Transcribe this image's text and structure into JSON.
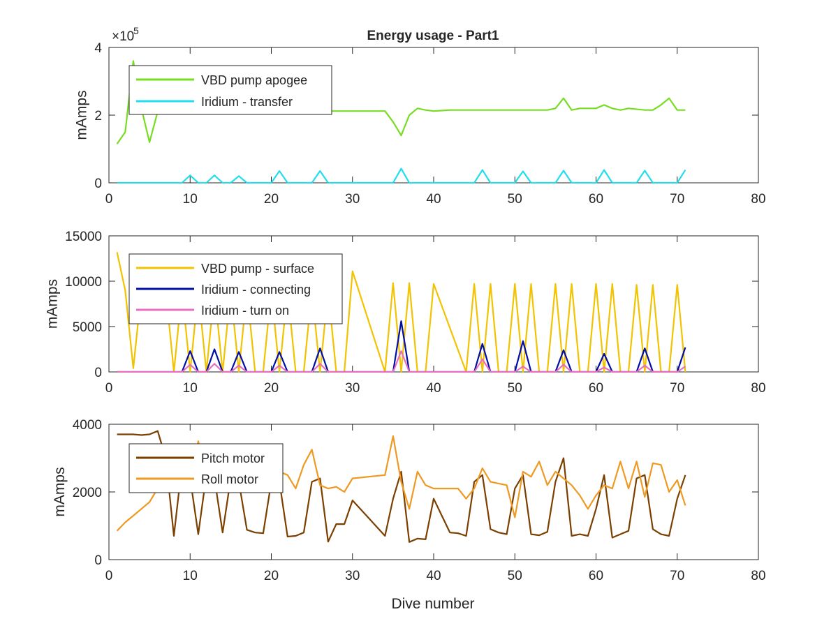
{
  "figure": {
    "title": "Energy usage - Part1",
    "xlabel": "Dive number"
  },
  "chart_data": [
    {
      "type": "line",
      "title": "Energy usage - Part1",
      "xlabel": "",
      "ylabel": "mAmps",
      "xlim": [
        0,
        80
      ],
      "ylim": [
        0,
        4
      ],
      "y_exponent_label": "×10",
      "y_exponent_power": "5",
      "xticks": [
        "0",
        "10",
        "20",
        "30",
        "40",
        "50",
        "60",
        "70",
        "80"
      ],
      "yticks": [
        "0",
        "2",
        "4"
      ],
      "ytick_values": [
        0,
        2,
        4
      ],
      "grid": false,
      "legend_position": "top-left",
      "series": [
        {
          "name": "VBD pump apogee",
          "color": "#77dd22",
          "x": [
            1,
            2,
            3,
            4,
            5,
            6,
            7,
            8,
            9,
            10,
            12,
            14,
            16,
            18,
            20,
            22,
            24,
            26,
            28,
            30,
            32,
            34,
            35,
            36,
            37,
            38,
            39,
            40,
            42,
            44,
            46,
            48,
            50,
            52,
            54,
            55,
            56,
            57,
            58,
            60,
            61,
            62,
            63,
            64,
            66,
            67,
            68,
            69,
            70,
            71
          ],
          "y": [
            1.15,
            1.5,
            3.6,
            2.2,
            1.2,
            2.1,
            2.1,
            2.1,
            2.1,
            2.12,
            2.12,
            2.12,
            2.12,
            2.12,
            2.12,
            2.12,
            2.12,
            2.12,
            2.12,
            2.12,
            2.12,
            2.12,
            1.8,
            1.4,
            2.0,
            2.2,
            2.15,
            2.12,
            2.15,
            2.15,
            2.15,
            2.15,
            2.15,
            2.15,
            2.15,
            2.2,
            2.5,
            2.15,
            2.2,
            2.2,
            2.3,
            2.2,
            2.15,
            2.2,
            2.15,
            2.15,
            2.3,
            2.5,
            2.15,
            2.15
          ]
        },
        {
          "name": "Iridium - transfer",
          "color": "#22ddee",
          "x": [
            1,
            9,
            10,
            11,
            12,
            13,
            14,
            15,
            16,
            17,
            20,
            21,
            22,
            25,
            26,
            27,
            35,
            36,
            37,
            45,
            46,
            47,
            50,
            51,
            52,
            55,
            56,
            57,
            60,
            61,
            62,
            65,
            66,
            67,
            70,
            71
          ],
          "y": [
            0,
            0,
            0.22,
            0,
            0,
            0.22,
            0,
            0,
            0.2,
            0,
            0,
            0.35,
            0,
            0,
            0.35,
            0,
            0,
            0.42,
            0,
            0,
            0.38,
            0,
            0,
            0.34,
            0,
            0,
            0.36,
            0,
            0,
            0.38,
            0,
            0,
            0.36,
            0,
            0,
            0.38
          ]
        }
      ]
    },
    {
      "type": "line",
      "title": "",
      "xlabel": "",
      "ylabel": "mAmps",
      "xlim": [
        0,
        80
      ],
      "ylim": [
        0,
        15000
      ],
      "xticks": [
        "0",
        "10",
        "20",
        "30",
        "40",
        "50",
        "60",
        "70",
        "80"
      ],
      "yticks": [
        "0",
        "5000",
        "10000",
        "15000"
      ],
      "ytick_values": [
        0,
        5000,
        10000,
        15000
      ],
      "grid": false,
      "legend_position": "top-left",
      "series": [
        {
          "name": "VBD pump - surface",
          "color": "#f2c300",
          "x": [
            1,
            2,
            3,
            4,
            5,
            6,
            7,
            8,
            9,
            10,
            11,
            12,
            13,
            14,
            15,
            16,
            17,
            18,
            19,
            20,
            21,
            22,
            23,
            24,
            25,
            26,
            27,
            28,
            29,
            30,
            34,
            35,
            36,
            37,
            38,
            39,
            40,
            44,
            45,
            46,
            47,
            48,
            49,
            50,
            51,
            52,
            53,
            54,
            55,
            56,
            57,
            58,
            59,
            60,
            61,
            62,
            63,
            64,
            65,
            66,
            67,
            68,
            69,
            70,
            71
          ],
          "y": [
            13200,
            9000,
            400,
            9000,
            9000,
            9000,
            9000,
            0,
            9000,
            0,
            9000,
            0,
            9000,
            0,
            9000,
            0,
            9000,
            0,
            0,
            9000,
            0,
            9000,
            0,
            0,
            9000,
            0,
            9000,
            0,
            0,
            11100,
            0,
            9800,
            0,
            9800,
            0,
            0,
            9700,
            0,
            9700,
            0,
            9700,
            0,
            0,
            9700,
            0,
            9700,
            0,
            0,
            9700,
            0,
            9700,
            0,
            0,
            9700,
            0,
            9700,
            0,
            0,
            9600,
            0,
            9600,
            0,
            0,
            9600,
            0
          ]
        },
        {
          "name": "Iridium - connecting",
          "color": "#000fa5",
          "x": [
            1,
            9,
            10,
            11,
            12,
            13,
            14,
            15,
            16,
            17,
            20,
            21,
            22,
            25,
            26,
            27,
            35,
            36,
            37,
            45,
            46,
            47,
            50,
            51,
            52,
            55,
            56,
            57,
            60,
            61,
            62,
            65,
            66,
            67,
            70,
            71
          ],
          "y": [
            0,
            0,
            2300,
            0,
            0,
            2500,
            0,
            0,
            2200,
            0,
            0,
            2200,
            0,
            0,
            2600,
            0,
            0,
            5600,
            0,
            0,
            3100,
            0,
            0,
            3400,
            0,
            0,
            2400,
            0,
            0,
            2000,
            0,
            0,
            2600,
            0,
            0,
            2700
          ]
        },
        {
          "name": "Iridium - turn on",
          "color": "#e96ec0",
          "x": [
            1,
            9,
            10,
            11,
            12,
            13,
            14,
            15,
            16,
            17,
            20,
            21,
            22,
            25,
            26,
            27,
            35,
            36,
            37,
            45,
            46,
            47,
            50,
            51,
            52,
            55,
            56,
            57,
            60,
            61,
            62,
            65,
            66,
            67,
            70,
            71
          ],
          "y": [
            0,
            0,
            800,
            0,
            0,
            900,
            0,
            0,
            700,
            0,
            0,
            700,
            0,
            0,
            900,
            0,
            0,
            2300,
            0,
            0,
            1400,
            0,
            0,
            600,
            0,
            0,
            800,
            0,
            0,
            500,
            0,
            0,
            700,
            0,
            0,
            600
          ]
        }
      ]
    },
    {
      "type": "line",
      "title": "",
      "xlabel": "Dive number",
      "ylabel": "mAmps",
      "xlim": [
        0,
        80
      ],
      "ylim": [
        0,
        4000
      ],
      "xticks": [
        "0",
        "10",
        "20",
        "30",
        "40",
        "50",
        "60",
        "70",
        "80"
      ],
      "yticks": [
        "0",
        "2000",
        "4000"
      ],
      "ytick_values": [
        0,
        2000,
        4000
      ],
      "grid": false,
      "legend_position": "top-left",
      "series": [
        {
          "name": "Pitch motor",
          "color": "#7b3f00",
          "x": [
            1,
            2,
            3,
            4,
            5,
            6,
            7,
            8,
            9,
            10,
            11,
            12,
            13,
            14,
            15,
            16,
            17,
            18,
            19,
            20,
            21,
            22,
            23,
            24,
            25,
            26,
            27,
            28,
            29,
            30,
            34,
            35,
            36,
            37,
            38,
            39,
            40,
            42,
            43,
            44,
            45,
            46,
            47,
            48,
            49,
            50,
            51,
            52,
            53,
            54,
            55,
            56,
            57,
            58,
            59,
            60,
            61,
            62,
            63,
            64,
            65,
            66,
            67,
            68,
            69,
            70,
            71
          ],
          "y": [
            3700,
            3700,
            3700,
            3680,
            3700,
            3800,
            3000,
            700,
            2800,
            2400,
            750,
            2500,
            2400,
            800,
            2400,
            2300,
            880,
            800,
            780,
            2300,
            2300,
            680,
            700,
            800,
            2300,
            2400,
            530,
            1050,
            1050,
            1750,
            700,
            1800,
            2600,
            520,
            620,
            600,
            1800,
            800,
            780,
            700,
            2300,
            2500,
            900,
            800,
            750,
            2100,
            2500,
            750,
            720,
            820,
            2300,
            3000,
            700,
            750,
            700,
            1500,
            2500,
            650,
            750,
            850,
            2400,
            2500,
            900,
            750,
            700,
            1800,
            2500
          ]
        },
        {
          "name": "Roll motor",
          "color": "#ee9922",
          "x": [
            1,
            2,
            3,
            4,
            5,
            6,
            7,
            8,
            9,
            10,
            11,
            12,
            13,
            14,
            15,
            16,
            17,
            18,
            19,
            20,
            21,
            22,
            23,
            24,
            25,
            26,
            27,
            28,
            29,
            30,
            34,
            35,
            36,
            37,
            38,
            39,
            40,
            42,
            43,
            44,
            45,
            46,
            47,
            48,
            49,
            50,
            51,
            52,
            53,
            54,
            55,
            56,
            57,
            58,
            59,
            60,
            61,
            62,
            63,
            64,
            65,
            66,
            67,
            68,
            69,
            70,
            71
          ],
          "y": [
            850,
            1100,
            1300,
            1500,
            1700,
            2100,
            2300,
            2300,
            2250,
            2200,
            3500,
            2300,
            2200,
            2100,
            2100,
            2200,
            2100,
            2150,
            2100,
            2300,
            2600,
            2500,
            2100,
            2800,
            3250,
            2200,
            2100,
            2150,
            2000,
            2400,
            2500,
            3650,
            2300,
            1500,
            2600,
            2200,
            2100,
            2100,
            2100,
            1800,
            2100,
            2700,
            2300,
            2250,
            2200,
            1250,
            2600,
            2450,
            2900,
            2200,
            2600,
            2400,
            2200,
            1900,
            1500,
            1900,
            2200,
            2100,
            2900,
            2100,
            2900,
            1850,
            2850,
            2800,
            2000,
            2350,
            1600
          ]
        }
      ]
    }
  ]
}
